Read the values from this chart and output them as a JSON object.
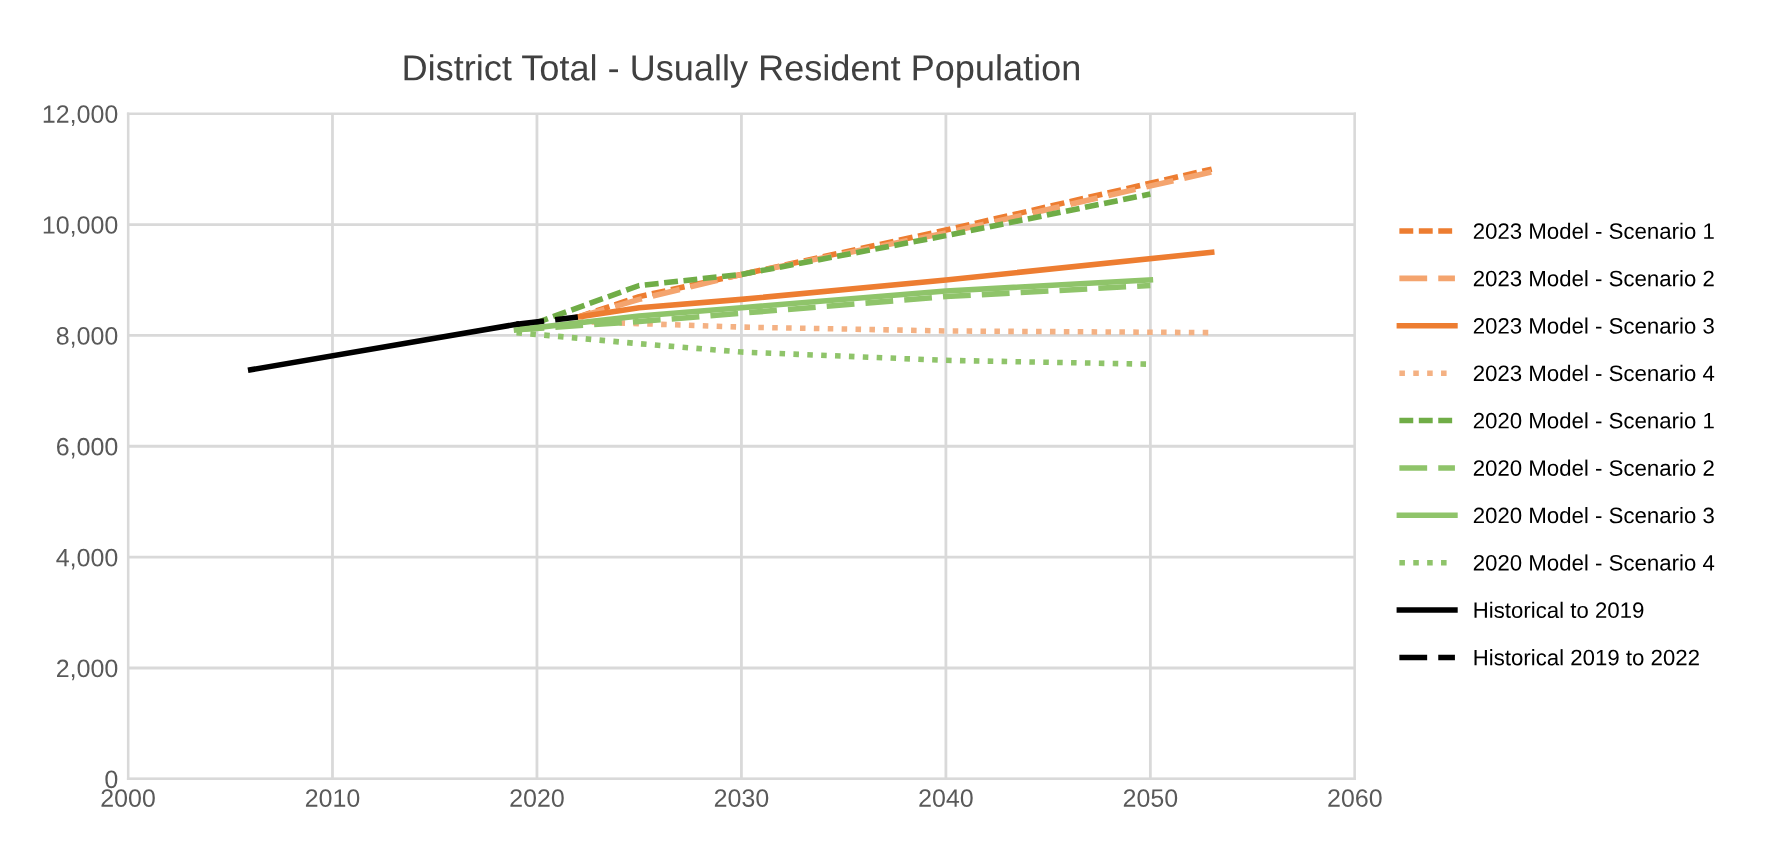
{
  "chart_data": {
    "type": "line",
    "title": "District Total - Usually Resident Population",
    "xlim": [
      2000,
      2060
    ],
    "xticks": [
      2000,
      2010,
      2020,
      2030,
      2040,
      2050,
      2060
    ],
    "ylim": [
      0,
      12000
    ],
    "yticks": [
      {
        "value": 0,
        "label": "0"
      },
      {
        "value": 2000,
        "label": "2,000"
      },
      {
        "value": 4000,
        "label": "4,000"
      },
      {
        "value": 6000,
        "label": "6,000"
      },
      {
        "value": 8000,
        "label": "8,000"
      },
      {
        "value": 10000,
        "label": "10,000"
      },
      {
        "value": 12000,
        "label": "12,000"
      }
    ],
    "grid": true,
    "legend": "right",
    "marker": "none",
    "series": [
      {
        "name": "2023 Model - Scenario 1",
        "color": "#ed7d31",
        "line_style": "dashed",
        "x": [
          2022,
          2025,
          2030,
          2040,
          2053
        ],
        "values": [
          8330,
          8700,
          9100,
          9900,
          11000
        ]
      },
      {
        "name": "2023 Model - Scenario 2",
        "color": "#f4a46e",
        "line_style": "longdash",
        "x": [
          2022,
          2025,
          2030,
          2040,
          2053
        ],
        "values": [
          8330,
          8650,
          9100,
          9850,
          10950
        ]
      },
      {
        "name": "2023 Model - Scenario 3",
        "color": "#ed7d31",
        "line_style": "solid",
        "x": [
          2022,
          2025,
          2030,
          2040,
          2053
        ],
        "values": [
          8330,
          8500,
          8650,
          9000,
          9500
        ]
      },
      {
        "name": "2023 Model - Scenario 4",
        "color": "#f4b183",
        "line_style": "dotted",
        "x": [
          2022,
          2030,
          2040,
          2053
        ],
        "values": [
          8250,
          8150,
          8080,
          8050
        ]
      },
      {
        "name": "2020 Model - Scenario 1",
        "color": "#70ad47",
        "line_style": "dashed",
        "x": [
          2019,
          2025,
          2030,
          2040,
          2050
        ],
        "values": [
          8100,
          8900,
          9100,
          9800,
          10550
        ]
      },
      {
        "name": "2020 Model - Scenario 2",
        "color": "#8fc46a",
        "line_style": "longdash",
        "x": [
          2019,
          2025,
          2030,
          2040,
          2050
        ],
        "values": [
          8100,
          8250,
          8400,
          8700,
          8900
        ]
      },
      {
        "name": "2020 Model - Scenario 3",
        "color": "#8fc46a",
        "line_style": "solid",
        "x": [
          2019,
          2025,
          2030,
          2040,
          2050
        ],
        "values": [
          8100,
          8350,
          8500,
          8800,
          9000
        ]
      },
      {
        "name": "2020 Model - Scenario 4",
        "color": "#8fc46a",
        "line_style": "dotted",
        "x": [
          2019,
          2025,
          2030,
          2040,
          2050
        ],
        "values": [
          8050,
          7850,
          7700,
          7550,
          7480
        ]
      },
      {
        "name": "Historical to 2019",
        "color": "#000000",
        "line_style": "solid",
        "x": [
          2006,
          2019
        ],
        "values": [
          7380,
          8200
        ]
      },
      {
        "name": "Historical 2019 to 2022",
        "color": "#000000",
        "line_style": "longdash",
        "x": [
          2019,
          2022
        ],
        "values": [
          8200,
          8330
        ]
      }
    ]
  }
}
